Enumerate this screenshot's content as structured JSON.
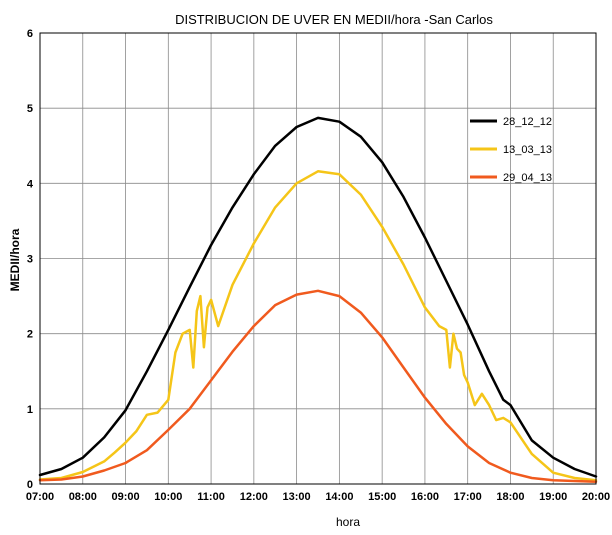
{
  "chart_data": {
    "type": "line",
    "title": "DISTRIBUCION DE UVER EN MEDII/hora -San Carlos",
    "xlabel": "hora",
    "ylabel": "MEDII/hora",
    "x_ticks": [
      "07:00",
      "08:00",
      "09:00",
      "10:00",
      "11:00",
      "12:00",
      "13:00",
      "14:00",
      "15:00",
      "16:00",
      "17:00",
      "18:00",
      "19:00",
      "20:00"
    ],
    "xlim": [
      "07:00",
      "20:00"
    ],
    "ylim": [
      0,
      6
    ],
    "y_ticks": [
      "0",
      "1",
      "2",
      "3",
      "4",
      "5",
      "6"
    ],
    "grid": true,
    "legend_position": "right",
    "series": [
      {
        "name": "28_12_12",
        "color": "#000000",
        "x": [
          "07:00",
          "07:30",
          "08:00",
          "08:30",
          "09:00",
          "09:30",
          "10:00",
          "10:30",
          "11:00",
          "11:30",
          "12:00",
          "12:30",
          "13:00",
          "13:30",
          "14:00",
          "14:30",
          "15:00",
          "15:30",
          "16:00",
          "16:30",
          "17:00",
          "17:30",
          "17:50",
          "18:00",
          "18:30",
          "19:00",
          "19:30",
          "20:00"
        ],
        "values": [
          0.12,
          0.2,
          0.35,
          0.62,
          0.98,
          1.5,
          2.05,
          2.62,
          3.18,
          3.68,
          4.12,
          4.5,
          4.75,
          4.87,
          4.82,
          4.62,
          4.28,
          3.82,
          3.28,
          2.7,
          2.12,
          1.5,
          1.12,
          1.05,
          0.58,
          0.35,
          0.2,
          0.1
        ]
      },
      {
        "name": "13_03_13",
        "color": "#f5c518",
        "x": [
          "07:00",
          "07:30",
          "08:00",
          "08:30",
          "08:45",
          "09:00",
          "09:15",
          "09:30",
          "09:45",
          "10:00",
          "10:10",
          "10:20",
          "10:30",
          "10:35",
          "10:40",
          "10:45",
          "10:50",
          "10:55",
          "11:00",
          "11:10",
          "11:30",
          "12:00",
          "12:30",
          "13:00",
          "13:30",
          "14:00",
          "14:30",
          "15:00",
          "15:30",
          "16:00",
          "16:20",
          "16:30",
          "16:35",
          "16:40",
          "16:45",
          "16:50",
          "16:55",
          "17:00",
          "17:10",
          "17:20",
          "17:30",
          "17:40",
          "17:50",
          "18:00",
          "18:30",
          "19:00",
          "19:30",
          "20:00"
        ],
        "values": [
          0.06,
          0.08,
          0.16,
          0.3,
          0.42,
          0.55,
          0.7,
          0.92,
          0.95,
          1.12,
          1.75,
          2.0,
          2.05,
          1.55,
          2.3,
          2.5,
          1.82,
          2.35,
          2.45,
          2.1,
          2.65,
          3.2,
          3.68,
          4.0,
          4.16,
          4.12,
          3.85,
          3.42,
          2.92,
          2.35,
          2.1,
          2.05,
          1.55,
          2.0,
          1.8,
          1.75,
          1.45,
          1.35,
          1.05,
          1.2,
          1.05,
          0.85,
          0.88,
          0.82,
          0.4,
          0.15,
          0.08,
          0.05
        ]
      },
      {
        "name": "29_04_13",
        "color": "#f05a1e",
        "x": [
          "07:00",
          "07:30",
          "08:00",
          "08:30",
          "09:00",
          "09:30",
          "10:00",
          "10:30",
          "11:00",
          "11:30",
          "12:00",
          "12:30",
          "13:00",
          "13:30",
          "14:00",
          "14:30",
          "15:00",
          "15:30",
          "16:00",
          "16:30",
          "17:00",
          "17:30",
          "18:00",
          "18:30",
          "19:00",
          "19:30",
          "20:00"
        ],
        "values": [
          0.05,
          0.06,
          0.1,
          0.18,
          0.28,
          0.45,
          0.72,
          1.0,
          1.38,
          1.76,
          2.1,
          2.38,
          2.52,
          2.57,
          2.5,
          2.28,
          1.95,
          1.55,
          1.15,
          0.8,
          0.5,
          0.28,
          0.15,
          0.08,
          0.05,
          0.04,
          0.03
        ]
      }
    ]
  }
}
